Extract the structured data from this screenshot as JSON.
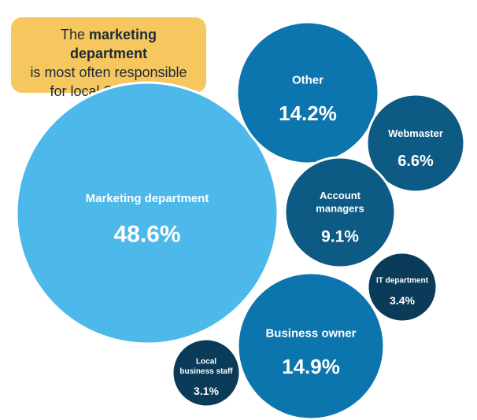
{
  "callout": {
    "prefix": "The ",
    "bold": "marketing department",
    "line2": "is most often responsible",
    "line3": "for local SEO work",
    "background_color": "#f5c75e"
  },
  "chart_data": {
    "type": "bubble",
    "unit": "%",
    "bubbles": [
      {
        "label": [
          "Marketing department"
        ],
        "value": 48.6,
        "color": "#4db8ea"
      },
      {
        "label": [
          "Other"
        ],
        "value": 14.2,
        "color": "#0d75ad"
      },
      {
        "label": [
          "Webmaster"
        ],
        "value": 6.6,
        "color": "#0d5a84"
      },
      {
        "label": [
          "Account",
          "managers"
        ],
        "value": 9.1,
        "color": "#0d5a84"
      },
      {
        "label": [
          "IT department"
        ],
        "value": 3.4,
        "color": "#0a3b58"
      },
      {
        "label": [
          "Business owner"
        ],
        "value": 14.9,
        "color": "#0d75ad"
      },
      {
        "label": [
          "Local",
          "business staff"
        ],
        "value": 3.1,
        "color": "#0a3b58"
      }
    ]
  }
}
